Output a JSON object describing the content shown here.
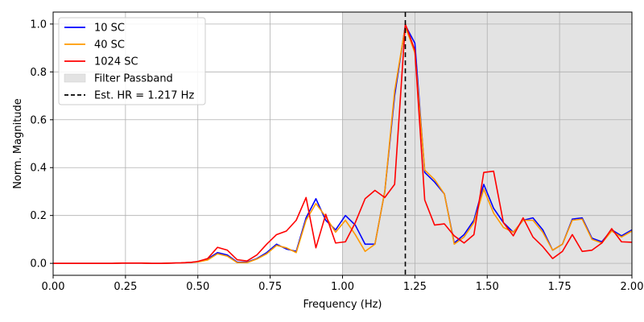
{
  "chart_data": {
    "type": "line",
    "xlabel": "Frequency (Hz)",
    "ylabel": "Norm. Magnitude",
    "xlim": [
      0.0,
      2.0
    ],
    "ylim": [
      -0.05,
      1.05
    ],
    "xticks": [
      "0.00",
      "0.25",
      "0.50",
      "0.75",
      "1.00",
      "1.25",
      "1.50",
      "1.75",
      "2.00"
    ],
    "xtick_values": [
      0.0,
      0.25,
      0.5,
      0.75,
      1.0,
      1.25,
      1.5,
      1.75,
      2.0
    ],
    "yticks": [
      "0.0",
      "0.2",
      "0.4",
      "0.6",
      "0.8",
      "1.0"
    ],
    "ytick_values": [
      0.0,
      0.2,
      0.4,
      0.6,
      0.8,
      1.0
    ],
    "grid": true,
    "legend_position": "upper-left",
    "passband": {
      "label": "Filter Passband",
      "x_start": 1.0,
      "x_end": 2.0,
      "color": "#e3e3e3"
    },
    "vline": {
      "label": "Est. HR = 1.217 Hz",
      "x": 1.217,
      "color": "#000000"
    },
    "x": [
      0.0,
      0.034,
      0.068,
      0.102,
      0.136,
      0.17,
      0.204,
      0.238,
      0.272,
      0.306,
      0.34,
      0.374,
      0.408,
      0.442,
      0.476,
      0.5,
      0.534,
      0.568,
      0.602,
      0.636,
      0.67,
      0.704,
      0.738,
      0.772,
      0.806,
      0.84,
      0.874,
      0.908,
      0.942,
      0.976,
      1.01,
      1.044,
      1.078,
      1.112,
      1.146,
      1.18,
      1.217,
      1.25,
      1.284,
      1.318,
      1.352,
      1.386,
      1.42,
      1.454,
      1.488,
      1.522,
      1.556,
      1.59,
      1.624,
      1.658,
      1.692,
      1.726,
      1.76,
      1.794,
      1.828,
      1.862,
      1.896,
      1.93,
      1.964,
      2.0
    ],
    "series": [
      {
        "name": "10 SC",
        "color": "#0000ff",
        "values": [
          0.0,
          0.0,
          0.0,
          0.0,
          0.0,
          0.0,
          0.0,
          0.001,
          0.001,
          0.001,
          0.0,
          0.0,
          0.001,
          0.002,
          0.004,
          0.007,
          0.018,
          0.045,
          0.035,
          0.005,
          0.005,
          0.02,
          0.045,
          0.08,
          0.06,
          0.05,
          0.19,
          0.27,
          0.18,
          0.14,
          0.2,
          0.16,
          0.08,
          0.08,
          0.3,
          0.7,
          0.995,
          0.92,
          0.38,
          0.34,
          0.29,
          0.085,
          0.12,
          0.18,
          0.33,
          0.23,
          0.17,
          0.13,
          0.18,
          0.19,
          0.14,
          0.055,
          0.08,
          0.185,
          0.19,
          0.105,
          0.09,
          0.14,
          0.115,
          0.14
        ]
      },
      {
        "name": "40 SC",
        "color": "#ff9900",
        "values": [
          0.0,
          0.0,
          0.0,
          0.0,
          0.0,
          0.0,
          0.0,
          0.001,
          0.001,
          0.001,
          0.0,
          0.0,
          0.001,
          0.002,
          0.004,
          0.006,
          0.014,
          0.04,
          0.03,
          0.003,
          0.003,
          0.018,
          0.04,
          0.075,
          0.065,
          0.045,
          0.18,
          0.25,
          0.195,
          0.13,
          0.18,
          0.12,
          0.05,
          0.08,
          0.3,
          0.72,
          0.99,
          0.88,
          0.39,
          0.35,
          0.29,
          0.08,
          0.11,
          0.17,
          0.31,
          0.21,
          0.15,
          0.13,
          0.18,
          0.18,
          0.13,
          0.055,
          0.08,
          0.18,
          0.185,
          0.1,
          0.085,
          0.135,
          0.11,
          0.135
        ]
      },
      {
        "name": "1024 SC",
        "color": "#ff0000",
        "values": [
          0.0,
          0.0,
          0.0,
          0.0,
          0.0,
          0.0,
          0.0,
          0.001,
          0.001,
          0.001,
          0.0,
          0.0,
          0.001,
          0.002,
          0.004,
          0.008,
          0.02,
          0.067,
          0.055,
          0.015,
          0.01,
          0.035,
          0.08,
          0.12,
          0.135,
          0.18,
          0.275,
          0.065,
          0.205,
          0.085,
          0.09,
          0.17,
          0.27,
          0.305,
          0.275,
          0.33,
          1.0,
          0.89,
          0.265,
          0.16,
          0.165,
          0.115,
          0.085,
          0.12,
          0.38,
          0.385,
          0.17,
          0.115,
          0.19,
          0.11,
          0.07,
          0.02,
          0.05,
          0.12,
          0.05,
          0.055,
          0.085,
          0.145,
          0.09,
          0.088
        ]
      }
    ]
  }
}
